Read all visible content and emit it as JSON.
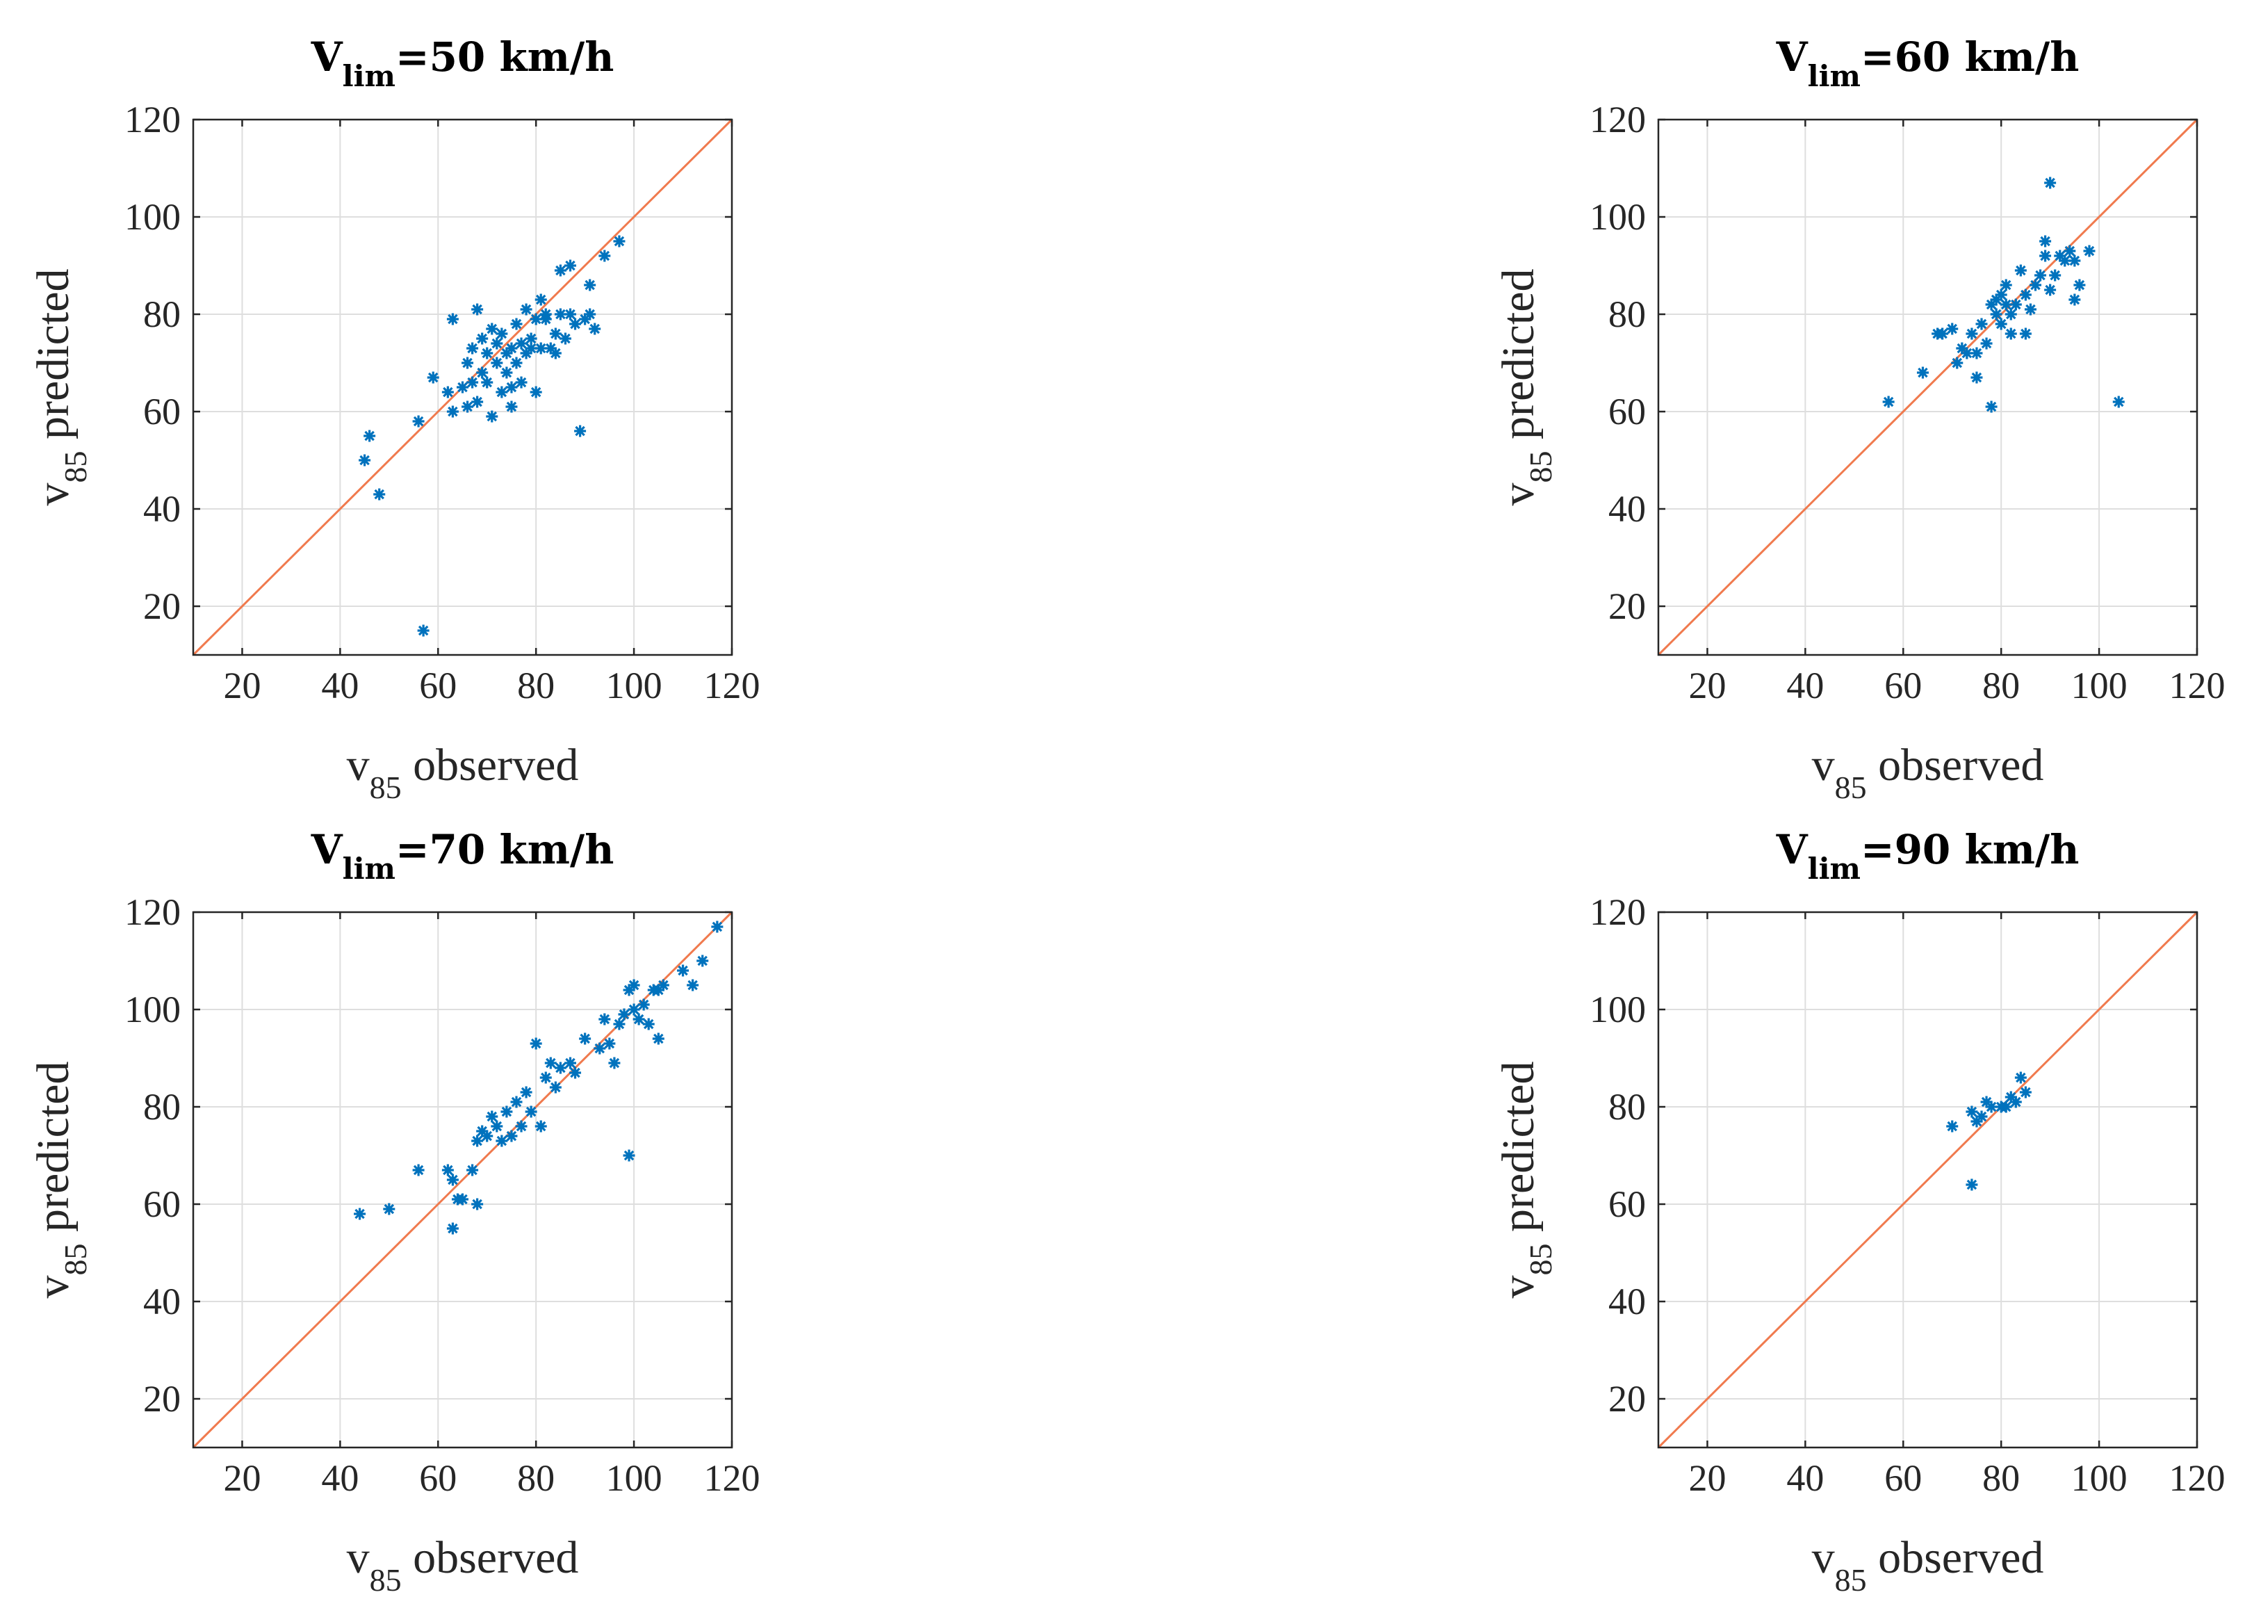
{
  "chart_data": [
    {
      "type": "scatter",
      "title": {
        "main": "V",
        "sub": "lim",
        "rest": "=50 km/h"
      },
      "xlabel": {
        "main": "v",
        "sub": "85",
        "rest": " observed"
      },
      "ylabel": {
        "main": "v",
        "sub": "85",
        "rest": " predicted"
      },
      "xlim": [
        10,
        120
      ],
      "ylim": [
        10,
        120
      ],
      "xticks": [
        20,
        40,
        60,
        80,
        100,
        120
      ],
      "yticks": [
        20,
        40,
        60,
        80,
        100,
        120
      ],
      "grid": true,
      "reference_line": "y = x",
      "series": [
        {
          "name": "v85",
          "marker": "asterisk",
          "color": "#0072bd",
          "points": [
            [
              45,
              50
            ],
            [
              46,
              55
            ],
            [
              48,
              43
            ],
            [
              57,
              15
            ],
            [
              56,
              58
            ],
            [
              59,
              67
            ],
            [
              62,
              64
            ],
            [
              63,
              79
            ],
            [
              63,
              60
            ],
            [
              65,
              65
            ],
            [
              66,
              70
            ],
            [
              66,
              61
            ],
            [
              67,
              73
            ],
            [
              67,
              66
            ],
            [
              68,
              62
            ],
            [
              68,
              81
            ],
            [
              69,
              75
            ],
            [
              69,
              68
            ],
            [
              70,
              72
            ],
            [
              70,
              66
            ],
            [
              71,
              59
            ],
            [
              71,
              77
            ],
            [
              72,
              74
            ],
            [
              72,
              70
            ],
            [
              73,
              64
            ],
            [
              73,
              76
            ],
            [
              74,
              68
            ],
            [
              74,
              72
            ],
            [
              75,
              73
            ],
            [
              75,
              65
            ],
            [
              75,
              61
            ],
            [
              76,
              70
            ],
            [
              76,
              78
            ],
            [
              77,
              74
            ],
            [
              77,
              66
            ],
            [
              78,
              81
            ],
            [
              78,
              72
            ],
            [
              79,
              75
            ],
            [
              79,
              73
            ],
            [
              80,
              79
            ],
            [
              80,
              64
            ],
            [
              81,
              83
            ],
            [
              81,
              73
            ],
            [
              82,
              79
            ],
            [
              82,
              80
            ],
            [
              83,
              73
            ],
            [
              84,
              76
            ],
            [
              84,
              72
            ],
            [
              85,
              80
            ],
            [
              85,
              89
            ],
            [
              86,
              75
            ],
            [
              87,
              90
            ],
            [
              87,
              80
            ],
            [
              88,
              78
            ],
            [
              89,
              56
            ],
            [
              90,
              79
            ],
            [
              91,
              86
            ],
            [
              91,
              80
            ],
            [
              92,
              77
            ],
            [
              94,
              92
            ],
            [
              97,
              95
            ]
          ]
        }
      ]
    },
    {
      "type": "scatter",
      "title": {
        "main": "V",
        "sub": "lim",
        "rest": "=60 km/h"
      },
      "xlabel": {
        "main": "v",
        "sub": "85",
        "rest": " observed"
      },
      "ylabel": {
        "main": "v",
        "sub": "85",
        "rest": " predicted"
      },
      "xlim": [
        10,
        120
      ],
      "ylim": [
        10,
        120
      ],
      "xticks": [
        20,
        40,
        60,
        80,
        100,
        120
      ],
      "yticks": [
        20,
        40,
        60,
        80,
        100,
        120
      ],
      "grid": true,
      "reference_line": "y = x",
      "series": [
        {
          "name": "v85",
          "marker": "asterisk",
          "color": "#0072bd",
          "points": [
            [
              57,
              62
            ],
            [
              64,
              68
            ],
            [
              67,
              76
            ],
            [
              68,
              76
            ],
            [
              70,
              77
            ],
            [
              71,
              70
            ],
            [
              72,
              73
            ],
            [
              73,
              72
            ],
            [
              74,
              76
            ],
            [
              75,
              67
            ],
            [
              75,
              72
            ],
            [
              76,
              78
            ],
            [
              77,
              74
            ],
            [
              78,
              61
            ],
            [
              78,
              82
            ],
            [
              79,
              83
            ],
            [
              79,
              80
            ],
            [
              80,
              78
            ],
            [
              80,
              84
            ],
            [
              81,
              86
            ],
            [
              81,
              82
            ],
            [
              82,
              80
            ],
            [
              82,
              76
            ],
            [
              83,
              82
            ],
            [
              84,
              89
            ],
            [
              85,
              76
            ],
            [
              85,
              84
            ],
            [
              86,
              81
            ],
            [
              87,
              86
            ],
            [
              88,
              88
            ],
            [
              89,
              92
            ],
            [
              89,
              95
            ],
            [
              90,
              107
            ],
            [
              90,
              85
            ],
            [
              91,
              88
            ],
            [
              92,
              92
            ],
            [
              93,
              91
            ],
            [
              94,
              93
            ],
            [
              95,
              83
            ],
            [
              95,
              91
            ],
            [
              96,
              86
            ],
            [
              98,
              93
            ],
            [
              104,
              62
            ]
          ]
        }
      ]
    },
    {
      "type": "scatter",
      "title": {
        "main": "V",
        "sub": "lim",
        "rest": "=70 km/h"
      },
      "xlabel": {
        "main": "v",
        "sub": "85",
        "rest": " observed"
      },
      "ylabel": {
        "main": "v",
        "sub": "85",
        "rest": " predicted"
      },
      "xlim": [
        10,
        120
      ],
      "ylim": [
        10,
        120
      ],
      "xticks": [
        20,
        40,
        60,
        80,
        100,
        120
      ],
      "yticks": [
        20,
        40,
        60,
        80,
        100,
        120
      ],
      "grid": true,
      "reference_line": "y = x",
      "series": [
        {
          "name": "v85",
          "marker": "asterisk",
          "color": "#0072bd",
          "points": [
            [
              44,
              58
            ],
            [
              50,
              59
            ],
            [
              56,
              67
            ],
            [
              62,
              67
            ],
            [
              63,
              55
            ],
            [
              63,
              65
            ],
            [
              64,
              61
            ],
            [
              65,
              61
            ],
            [
              67,
              67
            ],
            [
              68,
              73
            ],
            [
              68,
              60
            ],
            [
              69,
              75
            ],
            [
              70,
              74
            ],
            [
              71,
              78
            ],
            [
              72,
              76
            ],
            [
              73,
              73
            ],
            [
              74,
              79
            ],
            [
              75,
              74
            ],
            [
              76,
              81
            ],
            [
              77,
              76
            ],
            [
              78,
              83
            ],
            [
              79,
              79
            ],
            [
              80,
              93
            ],
            [
              81,
              76
            ],
            [
              82,
              86
            ],
            [
              83,
              89
            ],
            [
              84,
              84
            ],
            [
              85,
              88
            ],
            [
              87,
              89
            ],
            [
              88,
              87
            ],
            [
              90,
              94
            ],
            [
              93,
              92
            ],
            [
              94,
              98
            ],
            [
              95,
              93
            ],
            [
              96,
              89
            ],
            [
              97,
              97
            ],
            [
              98,
              99
            ],
            [
              99,
              70
            ],
            [
              99,
              104
            ],
            [
              100,
              105
            ],
            [
              100,
              100
            ],
            [
              101,
              98
            ],
            [
              102,
              101
            ],
            [
              103,
              97
            ],
            [
              104,
              104
            ],
            [
              105,
              94
            ],
            [
              105,
              104
            ],
            [
              106,
              105
            ],
            [
              110,
              108
            ],
            [
              112,
              105
            ],
            [
              114,
              110
            ],
            [
              117,
              117
            ]
          ]
        }
      ]
    },
    {
      "type": "scatter",
      "title": {
        "main": "V",
        "sub": "lim",
        "rest": "=90 km/h"
      },
      "xlabel": {
        "main": "v",
        "sub": "85",
        "rest": " observed"
      },
      "ylabel": {
        "main": "v",
        "sub": "85",
        "rest": " predicted"
      },
      "xlim": [
        10,
        120
      ],
      "ylim": [
        10,
        120
      ],
      "xticks": [
        20,
        40,
        60,
        80,
        100,
        120
      ],
      "yticks": [
        20,
        40,
        60,
        80,
        100,
        120
      ],
      "grid": true,
      "reference_line": "y = x",
      "series": [
        {
          "name": "v85",
          "marker": "asterisk",
          "color": "#0072bd",
          "points": [
            [
              70,
              76
            ],
            [
              74,
              64
            ],
            [
              74,
              79
            ],
            [
              75,
              77
            ],
            [
              76,
              78
            ],
            [
              77,
              81
            ],
            [
              78,
              80
            ],
            [
              80,
              80
            ],
            [
              81,
              80
            ],
            [
              82,
              82
            ],
            [
              83,
              81
            ],
            [
              84,
              86
            ],
            [
              85,
              83
            ]
          ]
        }
      ]
    }
  ]
}
